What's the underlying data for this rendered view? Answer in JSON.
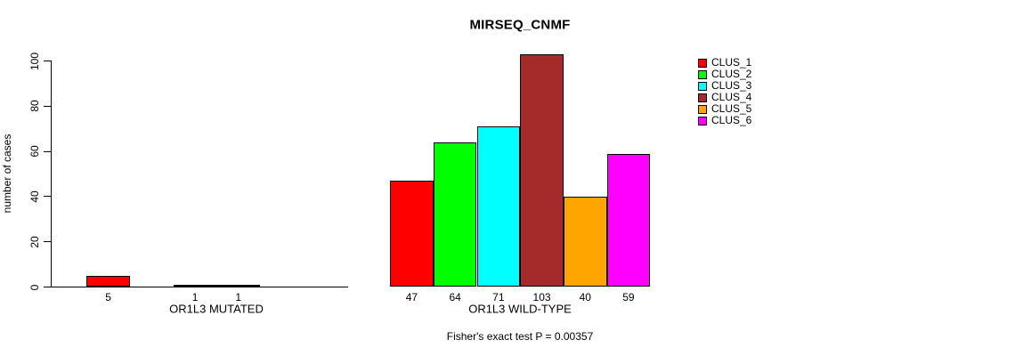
{
  "chart_data": {
    "type": "bar",
    "title": "MIRSEQ_CNMF",
    "ylabel": "number of cases",
    "ylim": [
      0,
      100
    ],
    "yticks": [
      0,
      20,
      40,
      60,
      80,
      100
    ],
    "grid": false,
    "legend_position": "top-right",
    "clusters": [
      {
        "name": "CLUS_1",
        "color": "#FF0000"
      },
      {
        "name": "CLUS_2",
        "color": "#00FF00"
      },
      {
        "name": "CLUS_3",
        "color": "#00FFFF"
      },
      {
        "name": "CLUS_4",
        "color": "#A52A2A"
      },
      {
        "name": "CLUS_5",
        "color": "#FFA500"
      },
      {
        "name": "CLUS_6",
        "color": "#FF00FF"
      }
    ],
    "groups": [
      {
        "label": "OR1L3 MUTATED",
        "values": [
          5,
          0,
          1,
          1,
          0,
          0
        ]
      },
      {
        "label": "OR1L3 WILD-TYPE",
        "values": [
          47,
          64,
          71,
          103,
          40,
          59
        ]
      }
    ],
    "annotation": "Fisher's exact test P = 0.00357"
  },
  "colors": {
    "background": "#FFFFFF",
    "axis": "#000000",
    "text": "#000000"
  }
}
